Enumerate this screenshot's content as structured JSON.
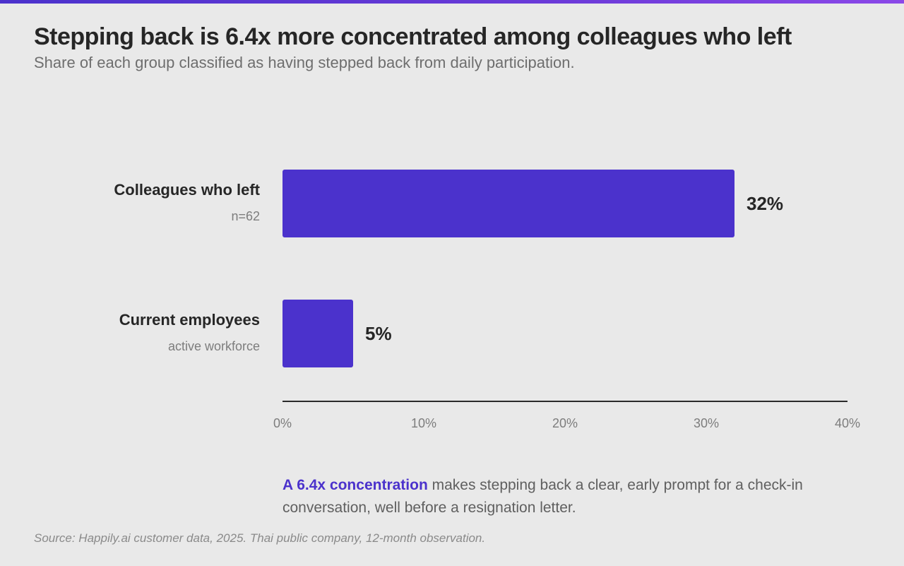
{
  "title": "Stepping back is 6.4x more concentrated among colleagues who left",
  "subtitle": "Share of each group classified as having stepped back from daily participation.",
  "colors": {
    "bar": "#4b32cc",
    "accent_bar": "#5b3be0",
    "axis": "#2a2a2a",
    "background": "#e9e9e9"
  },
  "chart_data": {
    "type": "bar",
    "orientation": "horizontal",
    "categories": [
      "Colleagues who left",
      "Current employees"
    ],
    "category_notes": [
      "n=62",
      "active workforce"
    ],
    "values": [
      32,
      5
    ],
    "value_labels": [
      "32%",
      "5%"
    ],
    "xlim": [
      0,
      40
    ],
    "x_ticks": [
      0,
      10,
      20,
      30,
      40
    ],
    "x_tick_labels": [
      "0%",
      "10%",
      "20%",
      "30%",
      "40%"
    ],
    "grid": false
  },
  "note": {
    "highlight": "A 6.4x concentration",
    "text": " makes stepping back a clear, early prompt for a check-in conversation, well before a resignation letter."
  },
  "source": "Source: Happily.ai customer data, 2025. Thai public company, 12-month observation."
}
